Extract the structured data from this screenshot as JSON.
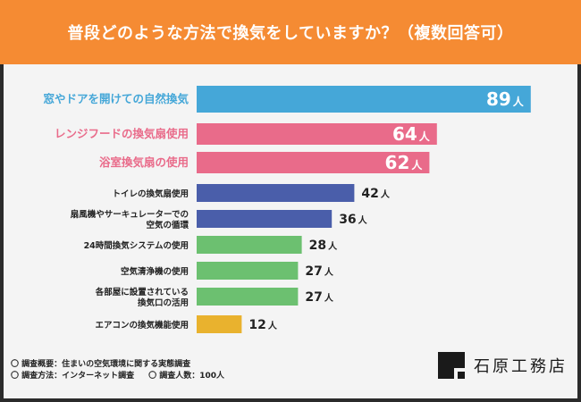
{
  "header": {
    "title": "普段どのような方法で換気をしていますか？（複数回答可）"
  },
  "chart_data": {
    "type": "bar",
    "orientation": "horizontal",
    "unit_suffix": "人",
    "categories": [
      [
        "窓やドアを開けての自然換気"
      ],
      [
        "レンジフードの換気扇使用"
      ],
      [
        "浴室換気扇の使用"
      ],
      [
        "トイレの換気扇使用"
      ],
      [
        "扇風機やサーキュレーターでの",
        "空気の循環"
      ],
      [
        "24時間換気システムの使用"
      ],
      [
        "空気清浄機の使用"
      ],
      [
        "各部屋に設置されている",
        "換気口の活用"
      ],
      [
        "エアコンの換気機能使用"
      ]
    ],
    "values": [
      89,
      64,
      62,
      42,
      36,
      28,
      27,
      27,
      12
    ],
    "bar_colors": [
      "#45a7d8",
      "#e96b8a",
      "#e96b8a",
      "#4a5eaa",
      "#4a5eaa",
      "#6cc070",
      "#6cc070",
      "#6cc070",
      "#e9b22e"
    ],
    "label_colors": [
      "#45a7d8",
      "#e96b8a",
      "#e96b8a",
      "#222222",
      "#222222",
      "#222222",
      "#222222",
      "#222222",
      "#222222"
    ],
    "highlight": [
      true,
      true,
      true,
      false,
      false,
      false,
      false,
      false,
      false
    ],
    "xlim": [
      0,
      100
    ],
    "grid": false
  },
  "footer": {
    "line1": "〇 調査概要：住まいの空気環境に関する実態調査",
    "line2a": "〇 調査方法：インターネット調査",
    "line2b": "〇 調査人数：100人"
  },
  "brand": {
    "name": "石原工務店"
  },
  "colors": {
    "header_bg": "#f58b33",
    "background": "#f4f4f4"
  }
}
